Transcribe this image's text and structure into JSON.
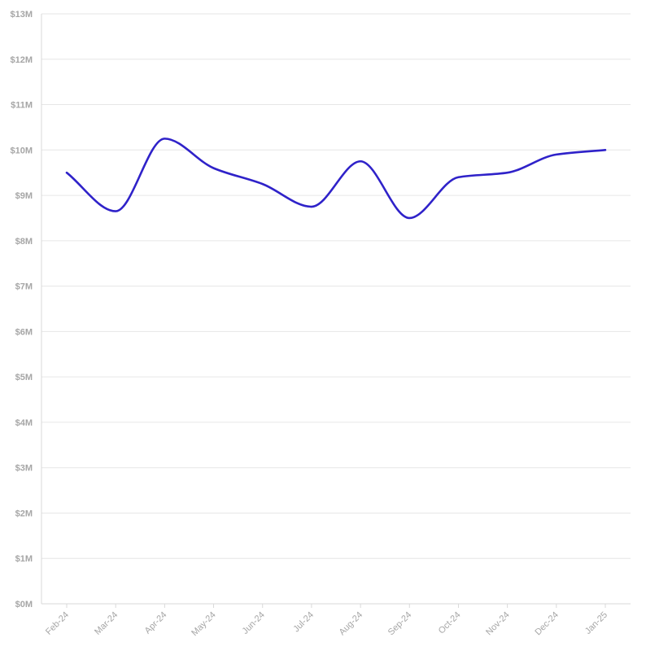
{
  "colors": {
    "line": "#2f22c9",
    "grid": "#e6e6e6",
    "tick_text": "#a6a6a6"
  },
  "chart_data": {
    "type": "line",
    "title": "",
    "xlabel": "",
    "ylabel": "",
    "categories": [
      "Feb-24",
      "Mar-24",
      "Apr-24",
      "May-24",
      "Jun-24",
      "Jul-24",
      "Aug-24",
      "Sep-24",
      "Oct-24",
      "Nov-24",
      "Dec-24",
      "Jan-25"
    ],
    "series": [
      {
        "values": [
          9.5,
          8.65,
          10.25,
          9.6,
          9.25,
          8.75,
          9.75,
          8.5,
          9.4,
          9.5,
          9.9,
          10.0
        ]
      }
    ],
    "ylim": [
      0,
      13
    ],
    "y_ticks": [
      0,
      1,
      2,
      3,
      4,
      5,
      6,
      7,
      8,
      9,
      10,
      11,
      12,
      13
    ],
    "y_tick_labels": [
      "$0M",
      "$1M",
      "$2M",
      "$3M",
      "$4M",
      "$5M",
      "$6M",
      "$7M",
      "$8M",
      "$9M",
      "$10M",
      "$11M",
      "$12M",
      "$13M"
    ],
    "grid": true,
    "legend": "none",
    "curve": "smooth"
  }
}
